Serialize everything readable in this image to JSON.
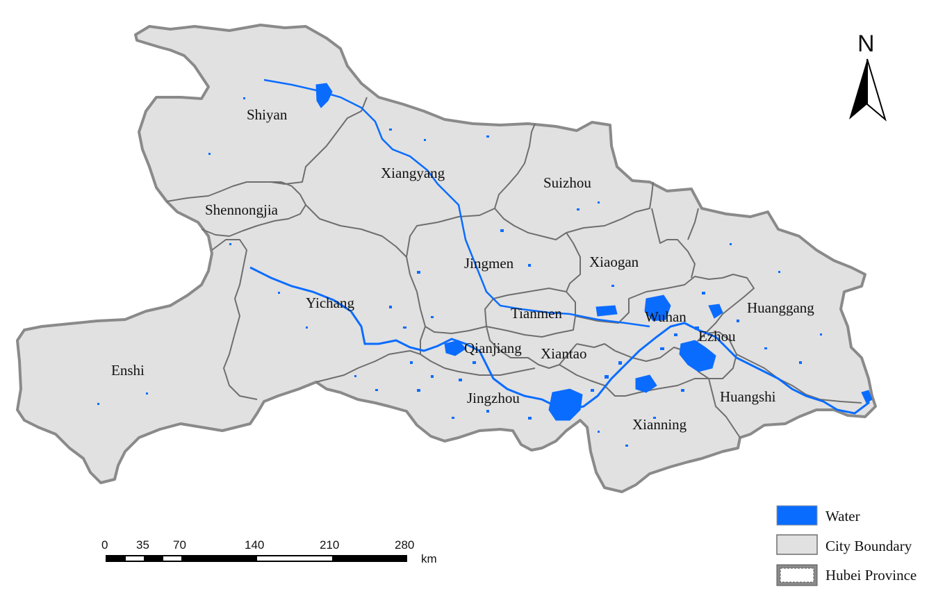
{
  "map": {
    "cities": [
      {
        "id": "shiyan",
        "name": "Shiyan"
      },
      {
        "id": "xiangyang",
        "name": "Xiangyang"
      },
      {
        "id": "suizhou",
        "name": "Suizhou"
      },
      {
        "id": "shennongjia",
        "name": "Shennongjia"
      },
      {
        "id": "jingmen",
        "name": "Jingmen"
      },
      {
        "id": "xiaogan",
        "name": "Xiaogan"
      },
      {
        "id": "yichang",
        "name": "Yichang"
      },
      {
        "id": "tianmen",
        "name": "Tianmen"
      },
      {
        "id": "wuhan",
        "name": "Wuhan"
      },
      {
        "id": "huanggang",
        "name": "Huanggang"
      },
      {
        "id": "ezhou",
        "name": "Ezhou"
      },
      {
        "id": "qianjiang",
        "name": "Qianjiang"
      },
      {
        "id": "xiantao",
        "name": "Xiantao"
      },
      {
        "id": "enshi",
        "name": "Enshi"
      },
      {
        "id": "jingzhou",
        "name": "Jingzhou"
      },
      {
        "id": "huangshi",
        "name": "Huangshi"
      },
      {
        "id": "xianning",
        "name": "Xianning"
      }
    ]
  },
  "north_arrow": {
    "label": "N"
  },
  "scale_bar": {
    "ticks": [
      "0",
      "35",
      "70",
      "140",
      "210",
      "280"
    ],
    "unit": "km"
  },
  "legend": {
    "items": [
      {
        "label": "Water",
        "color": "#0a6cff"
      },
      {
        "label": "City Boundary",
        "color": "#e1e1e1"
      },
      {
        "label": "Hubei Province",
        "color": "#ffffff"
      }
    ]
  },
  "colors": {
    "land": "#e1e1e1",
    "water": "#0a6cff",
    "province_border": "#8a8a8a",
    "city_border": "#6e6e6e"
  }
}
